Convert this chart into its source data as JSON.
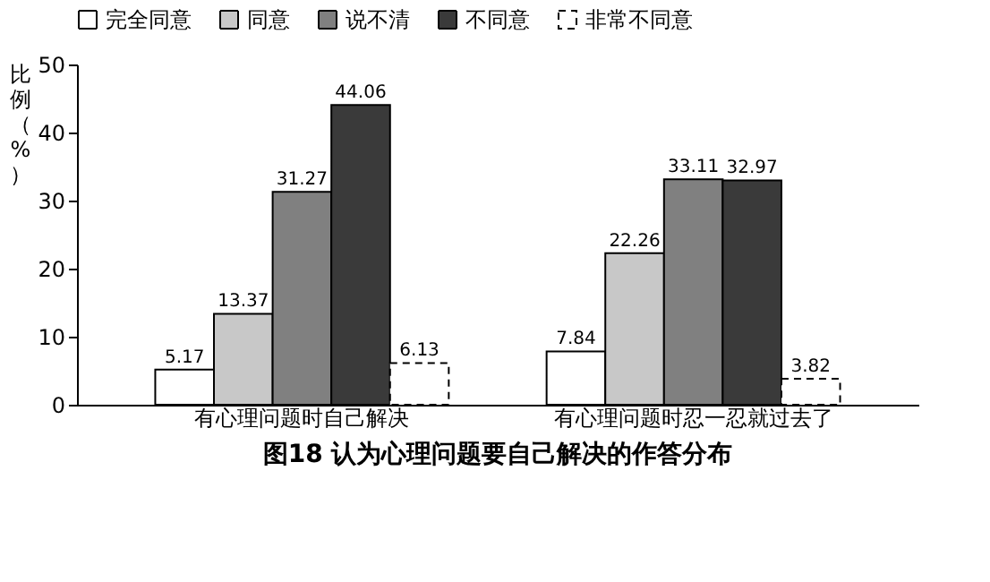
{
  "chart_data": {
    "type": "bar",
    "title": "图18 认为心理问题要自己解决的作答分布",
    "ylabel": "比例（%）",
    "categories": [
      "有心理问题时自己解决",
      "有心理问题时忍一忍就过去了"
    ],
    "series": [
      {
        "name": "完全同意",
        "color": "#ffffff",
        "values": [
          5.17,
          7.84
        ]
      },
      {
        "name": "同意",
        "color": "#c8c8c8",
        "values": [
          13.37,
          22.26
        ]
      },
      {
        "name": "说不清",
        "color": "#808080",
        "values": [
          31.27,
          33.11
        ]
      },
      {
        "name": "不同意",
        "color": "#3a3a3a",
        "values": [
          44.06,
          32.97
        ]
      },
      {
        "name": "非常不同意",
        "color": "#ffffff",
        "values": [
          6.13,
          3.82
        ],
        "line_style": "dashed"
      }
    ],
    "ylim": [
      0,
      50
    ],
    "yticks": [
      0,
      10,
      20,
      30,
      40,
      50
    ],
    "data_labels": true,
    "grid": false,
    "legend": "top"
  }
}
